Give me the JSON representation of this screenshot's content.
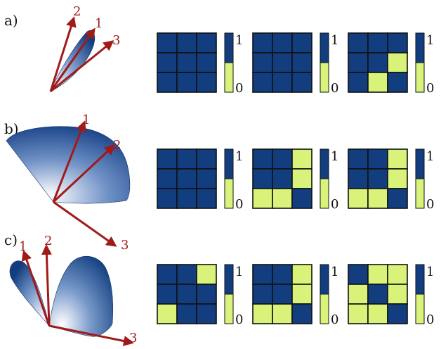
{
  "colors": {
    "blue": "#123e80",
    "yellow": "#d8f27a",
    "vector": "#a11a1a",
    "grid_line": "#111111"
  },
  "scale_top": "1",
  "scale_bottom": "0",
  "panels": [
    {
      "label": "a)",
      "vector_labels": [
        "2",
        "1",
        "3"
      ],
      "matrices": [
        {
          "cells": [
            [
              0,
              0,
              0
            ],
            [
              0,
              0,
              0
            ],
            [
              0,
              0,
              0
            ]
          ]
        },
        {
          "cells": [
            [
              0,
              0,
              0
            ],
            [
              0,
              0,
              0
            ],
            [
              0,
              0,
              0
            ]
          ]
        },
        {
          "cells": [
            [
              0,
              0,
              0
            ],
            [
              0,
              0,
              1
            ],
            [
              0,
              1,
              0
            ]
          ]
        }
      ]
    },
    {
      "label": "b)",
      "vector_labels": [
        "1",
        "2",
        "3"
      ],
      "matrices": [
        {
          "cells": [
            [
              0,
              0,
              0
            ],
            [
              0,
              0,
              0
            ],
            [
              0,
              0,
              0
            ]
          ]
        },
        {
          "cells": [
            [
              0,
              0,
              1
            ],
            [
              0,
              0,
              1
            ],
            [
              1,
              1,
              0
            ]
          ]
        },
        {
          "cells": [
            [
              0,
              0,
              1
            ],
            [
              0,
              0,
              1
            ],
            [
              1,
              1,
              0
            ]
          ]
        }
      ]
    },
    {
      "label": "c)",
      "vector_labels": [
        "1",
        "2",
        "3"
      ],
      "matrices": [
        {
          "cells": [
            [
              0,
              0,
              1
            ],
            [
              0,
              0,
              0
            ],
            [
              1,
              0,
              0
            ]
          ]
        },
        {
          "cells": [
            [
              0,
              0,
              1
            ],
            [
              0,
              0,
              1
            ],
            [
              1,
              1,
              0
            ]
          ]
        },
        {
          "cells": [
            [
              0,
              1,
              1
            ],
            [
              1,
              0,
              1
            ],
            [
              1,
              1,
              0
            ]
          ]
        }
      ]
    }
  ]
}
